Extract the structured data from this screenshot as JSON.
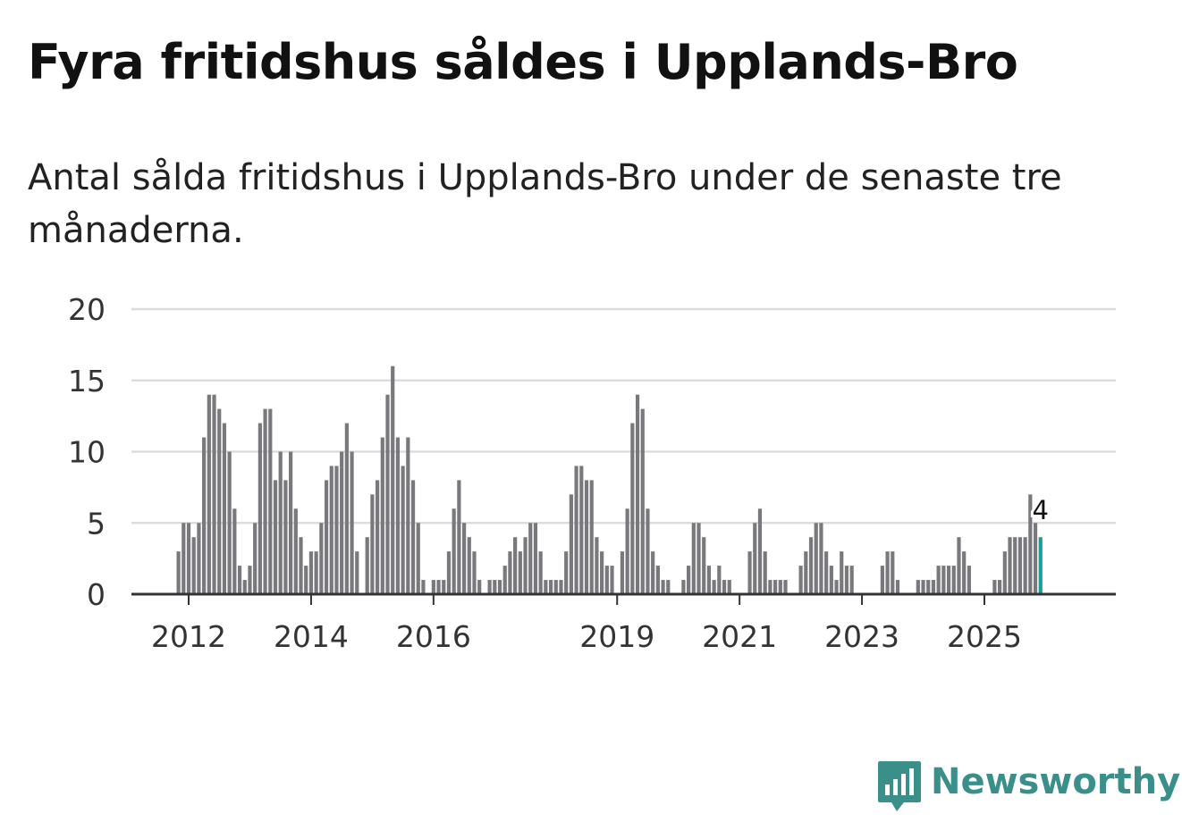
{
  "title": "Fyra fritidshus såldes i Upplands-Bro",
  "subtitle": "Antal sålda fritidshus i Upplands-Bro under de senaste tre månaderna.",
  "logo": {
    "icon": "newsworthy-logo-icon",
    "text": "Newsworthy"
  },
  "colors": {
    "bar": "#79787d",
    "highlight": "#1a9e99",
    "grid": "#dddddd",
    "axis": "#333333",
    "brand": "#3a8f8a"
  },
  "chart_data": {
    "type": "bar",
    "title": "Fyra fritidshus såldes i Upplands-Bro",
    "xlabel": "",
    "ylabel": "",
    "ylim": [
      0,
      20
    ],
    "yticks": [
      0,
      5,
      10,
      15,
      20
    ],
    "xticks": [
      "2012",
      "2014",
      "2016",
      "2019",
      "2021",
      "2023",
      "2025"
    ],
    "start": "2011-11",
    "values": [
      3,
      5,
      5,
      4,
      5,
      11,
      14,
      14,
      13,
      12,
      10,
      6,
      2,
      1,
      2,
      5,
      12,
      13,
      13,
      8,
      10,
      8,
      10,
      6,
      4,
      2,
      3,
      3,
      5,
      8,
      9,
      9,
      10,
      12,
      10,
      3,
      0,
      4,
      7,
      8,
      11,
      14,
      16,
      11,
      9,
      11,
      8,
      5,
      1,
      0,
      1,
      1,
      1,
      3,
      6,
      8,
      5,
      4,
      3,
      1,
      0,
      1,
      1,
      1,
      2,
      3,
      4,
      3,
      4,
      5,
      5,
      3,
      1,
      1,
      1,
      1,
      3,
      7,
      9,
      9,
      8,
      8,
      4,
      3,
      2,
      2,
      0,
      3,
      6,
      12,
      14,
      13,
      6,
      3,
      2,
      1,
      1,
      0,
      0,
      1,
      2,
      5,
      5,
      4,
      2,
      1,
      2,
      1,
      1,
      0,
      0,
      0,
      3,
      5,
      6,
      3,
      1,
      1,
      1,
      1,
      0,
      0,
      2,
      3,
      4,
      5,
      5,
      3,
      2,
      1,
      3,
      2,
      2,
      0,
      0,
      0,
      0,
      0,
      2,
      3,
      3,
      1,
      0,
      0,
      0,
      1,
      1,
      1,
      1,
      2,
      2,
      2,
      2,
      4,
      3,
      2,
      0,
      0,
      0,
      0,
      1,
      1,
      3,
      4,
      4,
      4,
      4,
      7,
      5,
      4
    ],
    "highlight_label": "4"
  }
}
